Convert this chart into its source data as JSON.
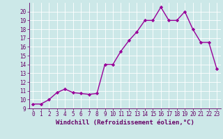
{
  "x": [
    0,
    1,
    2,
    3,
    4,
    5,
    6,
    7,
    8,
    9,
    10,
    11,
    12,
    13,
    14,
    15,
    16,
    17,
    18,
    19,
    20,
    21,
    22,
    23
  ],
  "y": [
    9.5,
    9.5,
    10.0,
    10.8,
    11.2,
    10.8,
    10.7,
    10.6,
    10.7,
    14.0,
    14.0,
    15.5,
    16.7,
    17.7,
    19.0,
    19.0,
    20.5,
    19.0,
    19.0,
    20.0,
    18.0,
    16.5,
    16.5,
    13.5
  ],
  "line_color": "#990099",
  "marker": "D",
  "marker_size": 2.2,
  "xlabel": "Windchill (Refroidissement éolien,°C)",
  "xlim_min": -0.5,
  "xlim_max": 23.5,
  "ylim_min": 9,
  "ylim_max": 21,
  "yticks": [
    9,
    10,
    11,
    12,
    13,
    14,
    15,
    16,
    17,
    18,
    19,
    20
  ],
  "xticks": [
    0,
    1,
    2,
    3,
    4,
    5,
    6,
    7,
    8,
    9,
    10,
    11,
    12,
    13,
    14,
    15,
    16,
    17,
    18,
    19,
    20,
    21,
    22,
    23
  ],
  "bg_color": "#cce8e8",
  "grid_color": "#ffffff",
  "tick_label_fontsize": 5.5,
  "xlabel_fontsize": 6.5,
  "line_width": 1.0,
  "spine_color": "#660066",
  "text_color": "#660066"
}
